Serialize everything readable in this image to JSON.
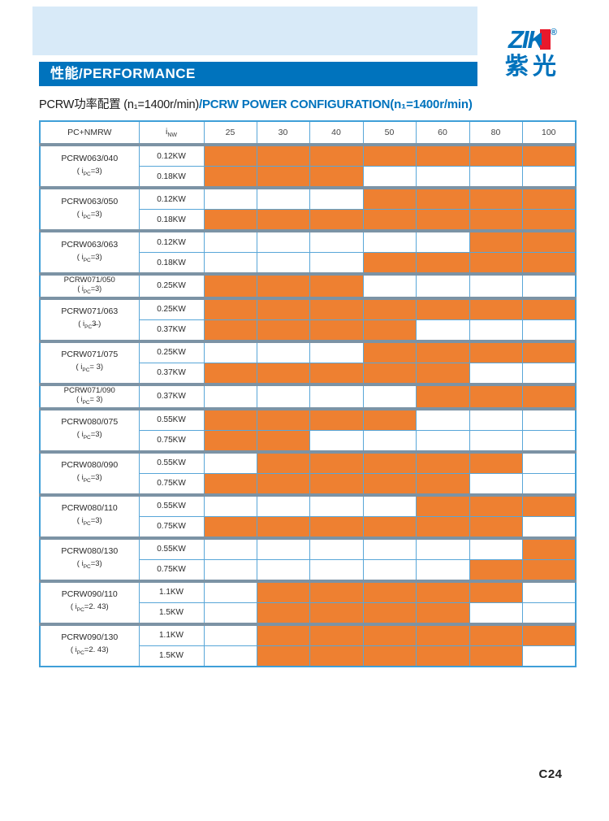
{
  "header": {
    "banner": "性能/PERFORMANCE",
    "logo": {
      "brand": "ZIK",
      "registered": "®",
      "brand_cn": "紫光"
    }
  },
  "title": {
    "black": "PCRW功率配置 (n₁=1400r/min)",
    "blue": "/PCRW POWER CONFIGURATION(n₁=1400r/min)"
  },
  "page": {
    "footer_page": "C24"
  },
  "colors": {
    "cell_orange": "#EE8031",
    "grid_blue": "#58A6D8",
    "outer_blue": "#3F9FD8",
    "separator": "#7C93A5",
    "banner_blue": "#0073BD",
    "title_blue": "#0073BD",
    "logo_blue": "#0072BC",
    "logo_red": "#E8192C",
    "panel_light_blue": "#D8EAF8"
  },
  "table": {
    "model_header": "PC+NMRW",
    "ratio_header": {
      "base": "i",
      "sub": "NW"
    },
    "ratio_columns": [
      "25",
      "30",
      "40",
      "50",
      "60",
      "80",
      "100"
    ],
    "groups": [
      {
        "model": "PCRW063/040",
        "ratio": {
          "pre": "( i",
          "sub": "PC",
          "post": "=3)"
        },
        "rows": [
          {
            "power": "0.12KW",
            "cells": [
              1,
              1,
              1,
              1,
              1,
              1,
              1
            ]
          },
          {
            "power": "0.18KW",
            "cells": [
              1,
              1,
              1,
              0,
              0,
              0,
              0
            ]
          }
        ]
      },
      {
        "model": "PCRW063/050",
        "ratio": {
          "pre": "( i",
          "sub": "PC",
          "post": "=3)"
        },
        "rows": [
          {
            "power": "0.12KW",
            "cells": [
              0,
              0,
              0,
              1,
              1,
              1,
              1
            ]
          },
          {
            "power": "0.18KW",
            "cells": [
              1,
              1,
              1,
              1,
              1,
              1,
              1
            ]
          }
        ]
      },
      {
        "model": "PCRW063/063",
        "ratio": {
          "pre": "( i",
          "sub": "PC",
          "post": "=3)"
        },
        "rows": [
          {
            "power": "0.12KW",
            "cells": [
              0,
              0,
              0,
              0,
              0,
              1,
              1
            ]
          },
          {
            "power": "0.18KW",
            "cells": [
              0,
              0,
              0,
              1,
              1,
              1,
              1
            ]
          }
        ]
      },
      {
        "model": "PCRW071/050",
        "ratio": {
          "pre": "( i",
          "sub": "PC",
          "post": "=3)"
        },
        "rows": [
          {
            "power": "0.25KW",
            "cells": [
              1,
              1,
              1,
              0,
              0,
              0,
              0
            ]
          }
        ]
      },
      {
        "model": "PCRW071/063",
        "ratio": {
          "pre": "( i",
          "sub": "PC",
          "post": "3̶  )"
        },
        "rows": [
          {
            "power": "0.25KW",
            "cells": [
              1,
              1,
              1,
              1,
              1,
              1,
              1
            ]
          },
          {
            "power": "0.37KW",
            "cells": [
              1,
              1,
              1,
              1,
              0,
              0,
              0
            ]
          }
        ]
      },
      {
        "model": "PCRW071/075",
        "ratio": {
          "pre": "( i",
          "sub": "PC",
          "post": "= 3)"
        },
        "rows": [
          {
            "power": "0.25KW",
            "cells": [
              0,
              0,
              0,
              1,
              1,
              1,
              1
            ]
          },
          {
            "power": "0.37KW",
            "cells": [
              1,
              1,
              1,
              1,
              1,
              0,
              0
            ]
          }
        ]
      },
      {
        "model": "PCRW071/090",
        "ratio": {
          "pre": "( i",
          "sub": "PC",
          "post": "= 3)"
        },
        "rows": [
          {
            "power": "0.37KW",
            "cells": [
              0,
              0,
              0,
              0,
              1,
              1,
              1
            ]
          }
        ]
      },
      {
        "model": "PCRW080/075",
        "ratio": {
          "pre": "( i",
          "sub": "PC",
          "post": "=3)"
        },
        "rows": [
          {
            "power": "0.55KW",
            "cells": [
              1,
              1,
              1,
              1,
              0,
              0,
              0
            ]
          },
          {
            "power": "0.75KW",
            "cells": [
              1,
              1,
              0,
              0,
              0,
              0,
              0
            ]
          }
        ]
      },
      {
        "model": "PCRW080/090",
        "ratio": {
          "pre": "( i",
          "sub": "PC",
          "post": "=3)"
        },
        "rows": [
          {
            "power": "0.55KW",
            "cells": [
              0,
              1,
              1,
              1,
              1,
              1,
              0
            ]
          },
          {
            "power": "0.75KW",
            "cells": [
              1,
              1,
              1,
              1,
              1,
              0,
              0
            ]
          }
        ]
      },
      {
        "model": "PCRW080/110",
        "ratio": {
          "pre": "( i",
          "sub": "PC",
          "post": "=3)"
        },
        "rows": [
          {
            "power": "0.55KW",
            "cells": [
              0,
              0,
              0,
              0,
              1,
              1,
              1
            ]
          },
          {
            "power": "0.75KW",
            "cells": [
              1,
              1,
              1,
              1,
              1,
              1,
              0
            ]
          }
        ]
      },
      {
        "model": "PCRW080/130",
        "ratio": {
          "pre": "( i",
          "sub": "PC",
          "post": "=3)"
        },
        "rows": [
          {
            "power": "0.55KW",
            "cells": [
              0,
              0,
              0,
              0,
              0,
              0,
              1
            ]
          },
          {
            "power": "0.75KW",
            "cells": [
              0,
              0,
              0,
              0,
              0,
              1,
              1
            ]
          }
        ]
      },
      {
        "model": "PCRW090/110",
        "ratio": {
          "pre": "( i",
          "sub": "PC",
          "post": "=2. 43)"
        },
        "rows": [
          {
            "power": "1.1KW",
            "cells": [
              0,
              1,
              1,
              1,
              1,
              1,
              0
            ]
          },
          {
            "power": "1.5KW",
            "cells": [
              0,
              1,
              1,
              1,
              1,
              0,
              0
            ]
          }
        ]
      },
      {
        "model": "PCRW090/130",
        "ratio": {
          "pre": "( i",
          "sub": "PC",
          "post": "=2. 43)"
        },
        "rows": [
          {
            "power": "1.1KW",
            "cells": [
              0,
              1,
              1,
              1,
              1,
              1,
              1
            ]
          },
          {
            "power": "1.5KW",
            "cells": [
              0,
              1,
              1,
              1,
              1,
              1,
              0
            ]
          }
        ]
      }
    ]
  }
}
